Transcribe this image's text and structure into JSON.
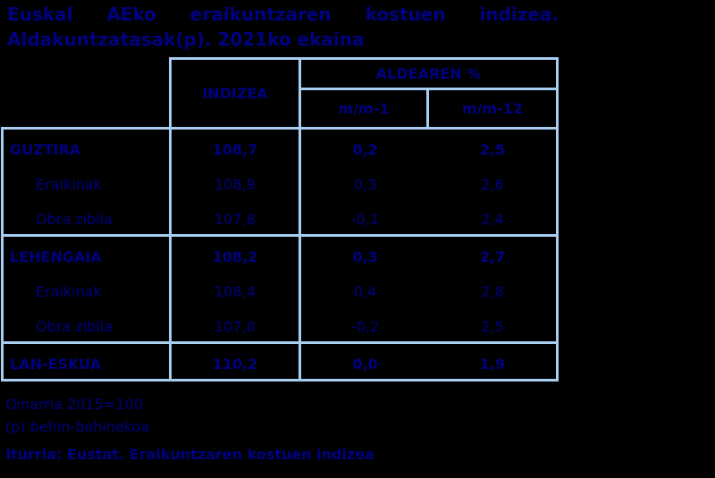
{
  "title": "Euskal AEko eraikuntzaren kostuen indizea. Aldakuntzatasak(p). 2021ko ekaina",
  "colors": {
    "bg": "#000000",
    "border": "#a7cdf0",
    "text": "#000082"
  },
  "table": {
    "header": {
      "indizea": "INDIZEA",
      "aldearen": "ALDEAREN %",
      "mm1": "m/m-1",
      "mm12": "m/m-12"
    },
    "groups": [
      {
        "rows": [
          {
            "label": "GUZTIRA",
            "indizea": "108,7",
            "mm1": "0,2",
            "mm12": "2,5"
          },
          {
            "label": "Eraikinak",
            "indizea": "108,9",
            "mm1": "0,3",
            "mm12": "2,6"
          },
          {
            "label": "Obra zibila",
            "indizea": "107,8",
            "mm1": "-0,1",
            "mm12": "2,4"
          }
        ]
      },
      {
        "rows": [
          {
            "label": "LEHENGAIA",
            "indizea": "108,2",
            "mm1": "0,3",
            "mm12": "2,7"
          },
          {
            "label": "Eraikinak",
            "indizea": "108,4",
            "mm1": "0,4",
            "mm12": "2,8"
          },
          {
            "label": "Obra zibila",
            "indizea": "107,0",
            "mm1": "-0,2",
            "mm12": "2,5"
          }
        ]
      },
      {
        "rows": [
          {
            "label": "LAN-ESKUA",
            "indizea": "110,2",
            "mm1": "0,0",
            "mm12": "1,9"
          }
        ]
      }
    ]
  },
  "footer": {
    "base_note": "Oinarria 2015=100",
    "provisional_note": "(p) behin-behinekoa",
    "source": "Iturria: Eustat. Eraikuntzaren kostuen indizea"
  },
  "chart_data": {
    "type": "table",
    "title": "Euskal AEko eraikuntzaren kostuen indizea. Aldakuntzatasak(p). 2021ko ekaina",
    "columns": [
      "",
      "INDIZEA",
      "ALDEAREN % m/m-1",
      "ALDEAREN % m/m-12"
    ],
    "rows": [
      [
        "GUZTIRA",
        108.7,
        0.2,
        2.5
      ],
      [
        "Eraikinak",
        108.9,
        0.3,
        2.6
      ],
      [
        "Obra zibila",
        107.8,
        -0.1,
        2.4
      ],
      [
        "LEHENGAIA",
        108.2,
        0.3,
        2.7
      ],
      [
        "Eraikinak",
        108.4,
        0.4,
        2.8
      ],
      [
        "Obra zibila",
        107.0,
        -0.2,
        2.5
      ],
      [
        "LAN-ESKUA",
        110.2,
        0.0,
        1.9
      ]
    ],
    "notes": [
      "Oinarria 2015=100",
      "(p) behin-behinekoa"
    ],
    "source": "Iturria: Eustat. Eraikuntzaren kostuen indizea"
  }
}
